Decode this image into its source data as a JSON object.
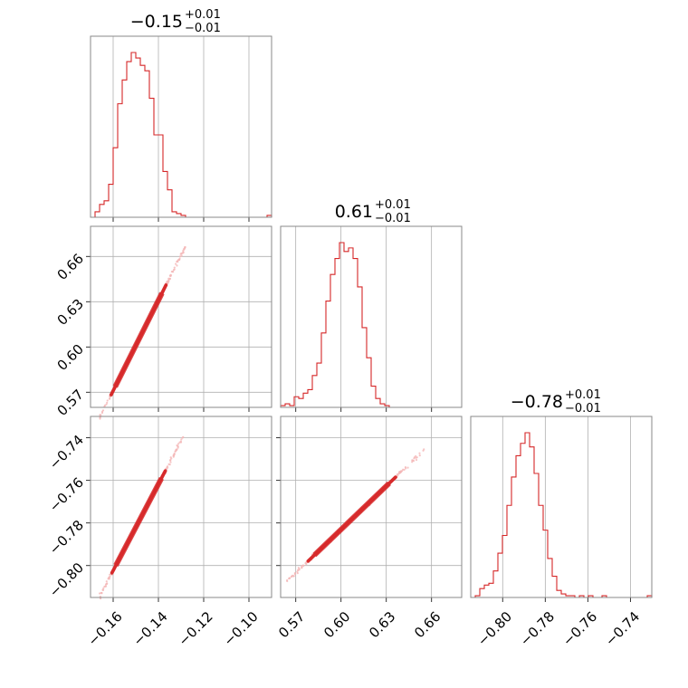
{
  "colors": {
    "series": "#d62728",
    "scatter": "#f4b6b6",
    "grid": "#b0b0b0",
    "frame": "#888888"
  },
  "chart_data": {
    "type": "corner",
    "grid": true,
    "parameters": [
      {
        "id": "p0",
        "range": [
          -0.17,
          -0.09
        ],
        "ticks": [
          -0.16,
          -0.14,
          -0.12,
          -0.1
        ],
        "tick_labels": [
          "−0.16",
          "−0.14",
          "−0.12",
          "−0.10"
        ],
        "title": {
          "main": "−0.15",
          "sup": "+0.01",
          "sub": "−0.01"
        },
        "histogram": {
          "bin_width": 0.002,
          "counts": [
            0,
            3,
            7,
            9,
            18,
            38,
            62,
            75,
            85,
            90,
            87,
            83,
            80,
            65,
            45,
            45,
            25,
            15,
            3,
            2,
            1,
            0,
            0,
            0,
            0,
            0,
            0,
            0,
            0,
            0,
            0,
            0,
            0,
            0,
            0,
            0,
            0,
            0,
            0,
            1
          ]
        }
      },
      {
        "id": "p1",
        "range": [
          0.56,
          0.68
        ],
        "ticks": [
          0.57,
          0.6,
          0.63,
          0.66
        ],
        "tick_labels": [
          "0.57",
          "0.60",
          "0.63",
          "0.66"
        ],
        "title": {
          "main": "0.61",
          "sup": "+0.01",
          "sub": "−0.01"
        },
        "histogram": {
          "bin_width": 0.003,
          "counts": [
            1,
            2,
            1,
            6,
            5,
            8,
            10,
            18,
            25,
            42,
            60,
            75,
            84,
            93,
            88,
            90,
            84,
            68,
            45,
            28,
            12,
            5,
            2,
            1,
            0,
            0,
            0,
            0,
            0,
            0,
            0,
            0,
            0,
            0,
            0,
            0,
            0,
            0,
            0,
            0
          ]
        }
      },
      {
        "id": "p2",
        "range": [
          -0.815,
          -0.73
        ],
        "ticks": [
          -0.8,
          -0.78,
          -0.76,
          -0.74
        ],
        "tick_labels": [
          "−0.80",
          "−0.78",
          "−0.76",
          "−0.74"
        ],
        "title": {
          "main": "−0.78",
          "sup": "+0.01",
          "sub": "−0.01"
        },
        "histogram": {
          "bin_width": 0.002125,
          "counts": [
            0,
            1,
            5,
            7,
            8,
            15,
            25,
            35,
            52,
            68,
            80,
            87,
            93,
            85,
            70,
            52,
            38,
            22,
            12,
            4,
            2,
            1,
            1,
            0,
            1,
            0,
            1,
            0,
            0,
            1,
            0,
            0,
            0,
            0,
            0,
            0,
            0,
            0,
            0,
            1
          ]
        }
      }
    ],
    "scatter": [
      {
        "x": "p0",
        "y": "p1",
        "line": {
          "slope": 3.0,
          "x_center": -0.148,
          "y_center": 0.607,
          "x_min": -0.166,
          "x_max": -0.128
        }
      },
      {
        "x": "p0",
        "y": "p2",
        "line": {
          "slope": 2.03,
          "x_center": -0.148,
          "y_center": -0.778,
          "x_min": -0.166,
          "x_max": -0.129
        }
      },
      {
        "x": "p1",
        "y": "p2",
        "line": {
          "slope": 0.68,
          "x_center": 0.609,
          "y_center": -0.777,
          "x_min": 0.564,
          "x_max": 0.655
        }
      }
    ]
  }
}
